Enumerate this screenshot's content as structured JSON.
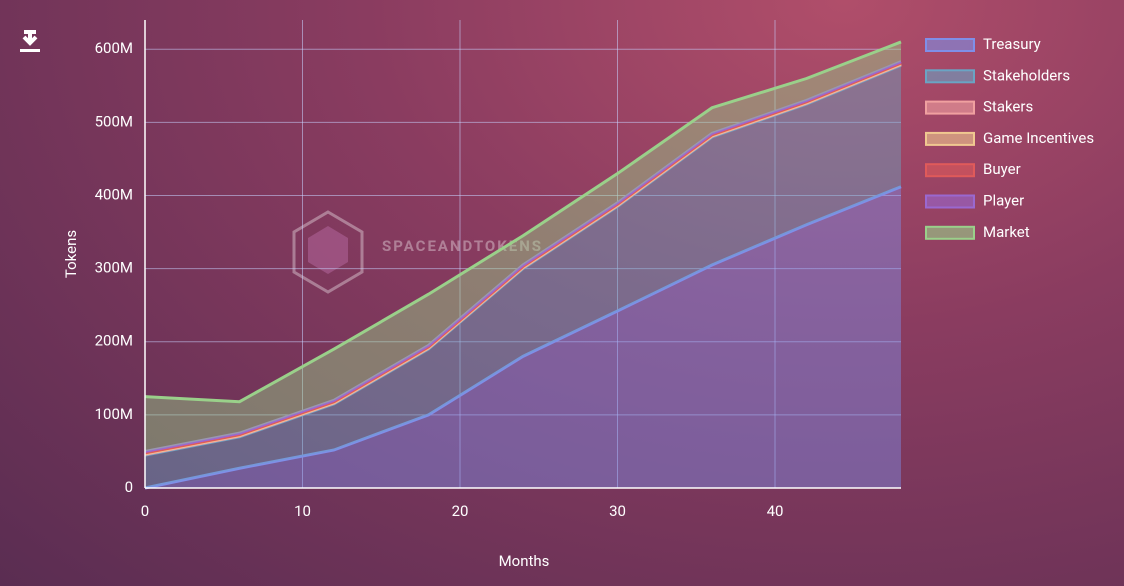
{
  "chart_data": {
    "type": "stacked_area",
    "watermark": "SPACEANDTOKENS",
    "x_label": "Months",
    "y_label": "Tokens",
    "x": [
      0,
      6,
      12,
      18,
      24,
      30,
      36,
      42,
      48
    ],
    "xlim": [
      0,
      48
    ],
    "xticks": [
      0,
      10,
      20,
      30,
      40
    ],
    "ylim": [
      0,
      640000000
    ],
    "yticks": [
      0,
      {
        "value": 100000000,
        "label": "100M"
      },
      {
        "value": 200000000,
        "label": "200M"
      },
      {
        "value": 300000000,
        "label": "300M"
      },
      {
        "value": 400000000,
        "label": "400M"
      },
      {
        "value": 500000000,
        "label": "500M"
      },
      {
        "value": 600000000,
        "label": "600M"
      }
    ],
    "grid": true,
    "legend": "right",
    "series": [
      {
        "name": "Treasury",
        "color": "#7f8fe8",
        "values": [
          0,
          27000000,
          52000000,
          100000000,
          180000000,
          242000000,
          305000000,
          360000000,
          412000000
        ]
      },
      {
        "name": "Stakeholders",
        "color": "#6aa4c4",
        "values": [
          45000000,
          43000000,
          63000000,
          90000000,
          120000000,
          143000000,
          175000000,
          165000000,
          166000000
        ]
      },
      {
        "name": "Stakers",
        "color": "#f0a0a0",
        "values": [
          1000000,
          1000000,
          1000000,
          1000000,
          1000000,
          1000000,
          1000000,
          1000000,
          1000000
        ]
      },
      {
        "name": "Game Incentives",
        "color": "#f0c890",
        "values": [
          1000000,
          1000000,
          1000000,
          1000000,
          1000000,
          1000000,
          1000000,
          1000000,
          1000000
        ]
      },
      {
        "name": "Buyer",
        "color": "#e05a5a",
        "values": [
          1000000,
          1000000,
          1000000,
          1000000,
          1000000,
          1000000,
          1000000,
          1000000,
          1000000
        ]
      },
      {
        "name": "Player",
        "color": "#9a68d0",
        "values": [
          2000000,
          2000000,
          2000000,
          2000000,
          2000000,
          2000000,
          2000000,
          2000000,
          2000000
        ]
      },
      {
        "name": "Market",
        "color": "#9ad08a",
        "values": [
          75000000,
          43000000,
          70000000,
          70000000,
          40000000,
          40000000,
          35000000,
          30000000,
          27000000
        ]
      }
    ]
  }
}
